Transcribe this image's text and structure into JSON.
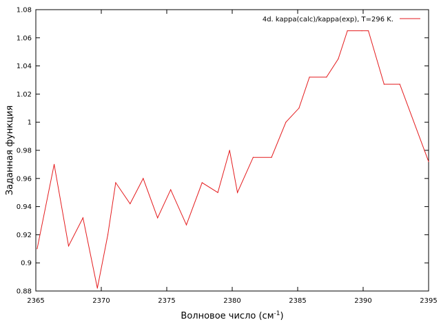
{
  "chart_data": {
    "type": "line",
    "title": "",
    "xlabel": "Волновое число (см",
    "xlabel_sup": "-1",
    "xlabel_suffix": ")",
    "ylabel": "Заданная функция",
    "xlim": [
      2365,
      2395
    ],
    "ylim": [
      0.88,
      1.08
    ],
    "xticks": [
      2365,
      2370,
      2375,
      2380,
      2385,
      2390,
      2395
    ],
    "yticks": [
      "0.88",
      "0.9",
      "0.92",
      "0.94",
      "0.96",
      "0.98",
      "1",
      "1.02",
      "1.04",
      "1.06",
      "1.08"
    ],
    "grid": false,
    "legend_position": "top-right",
    "series": [
      {
        "name": "4d. kappa(calc)/kappa(exp), T=296 K.",
        "color": "#e41a1c",
        "x": [
          2365.1,
          2366.4,
          2367.5,
          2368.6,
          2369.7,
          2370.5,
          2371.1,
          2372.2,
          2373.2,
          2374.3,
          2375.3,
          2376.5,
          2377.7,
          2378.9,
          2379.8,
          2380.4,
          2381.6,
          2383.0,
          2384.1,
          2385.1,
          2385.9,
          2387.2,
          2388.1,
          2388.8,
          2389.9,
          2390.4,
          2391.6,
          2392.8,
          2395.0
        ],
        "y": [
          0.91,
          0.97,
          0.912,
          0.932,
          0.882,
          0.92,
          0.957,
          0.942,
          0.96,
          0.932,
          0.952,
          0.927,
          0.957,
          0.95,
          0.98,
          0.95,
          0.975,
          0.975,
          1.0,
          1.01,
          1.032,
          1.032,
          1.045,
          1.065,
          1.065,
          1.065,
          1.027,
          1.027,
          0.972
        ]
      }
    ]
  }
}
